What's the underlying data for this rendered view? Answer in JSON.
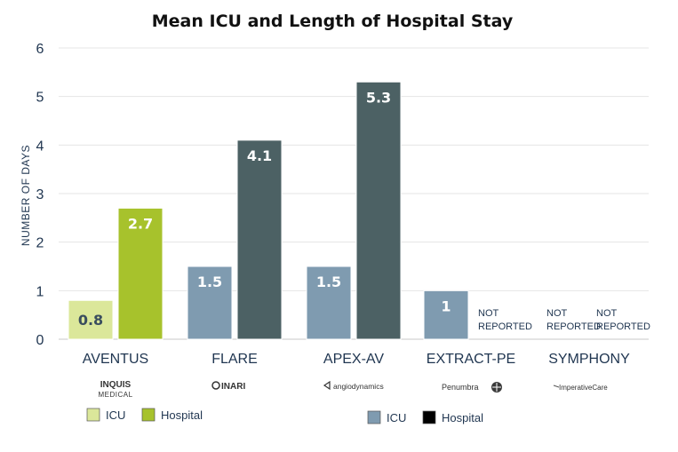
{
  "chart_data": {
    "type": "bar",
    "title": "Mean ICU and Length of Hospital Stay",
    "xlabel": "",
    "ylabel": "NUMBER OF DAYS",
    "ylim": [
      0,
      6
    ],
    "yticks": [
      0,
      1,
      2,
      3,
      4,
      5,
      6
    ],
    "grid": true,
    "categories": [
      "AVENTUS",
      "FLARE",
      "APEX-AV",
      "EXTRACT-PE",
      "SYMPHONY"
    ],
    "series": [
      {
        "name": "ICU",
        "values": [
          0.8,
          1.5,
          1.5,
          1,
          null
        ],
        "labels": [
          "0.8",
          "1.5",
          "1.5",
          "1",
          "NOT REPORTED"
        ]
      },
      {
        "name": "Hospital",
        "values": [
          2.7,
          4.1,
          5.3,
          null,
          null
        ],
        "labels": [
          "2.7",
          "4.1",
          "5.3",
          "NOT REPORTED",
          "NOT REPORTED"
        ]
      }
    ],
    "colors": {
      "aventus_icu": "#dbe79a",
      "aventus_hospital": "#a7c22c",
      "icu": "#7f9bb0",
      "hospital": "#4c6164",
      "grid": "#e4e4e4",
      "text": "#1f3550"
    },
    "legends": [
      {
        "items": [
          {
            "label": "ICU",
            "color": "#dbe79a"
          },
          {
            "label": "Hospital",
            "color": "#a7c22c"
          }
        ]
      },
      {
        "items": [
          {
            "label": "ICU",
            "color": "#7f9bb0"
          },
          {
            "label": "Hospital",
            "color": "#000000"
          }
        ]
      }
    ],
    "logos": [
      {
        "icon": "inquis-medical-logo",
        "line1": "INQUIS",
        "line2": "MEDICAL"
      },
      {
        "icon": "inari-logo",
        "line1": "INARI",
        "line2": ""
      },
      {
        "icon": "angiodynamics-logo",
        "line1": "angiodynamics",
        "line2": ""
      },
      {
        "icon": "penumbra-logo",
        "line1": "Penumbra",
        "line2": ""
      },
      {
        "icon": "imperative-care-logo",
        "line1": "ImperativeCare",
        "line2": ""
      }
    ]
  }
}
